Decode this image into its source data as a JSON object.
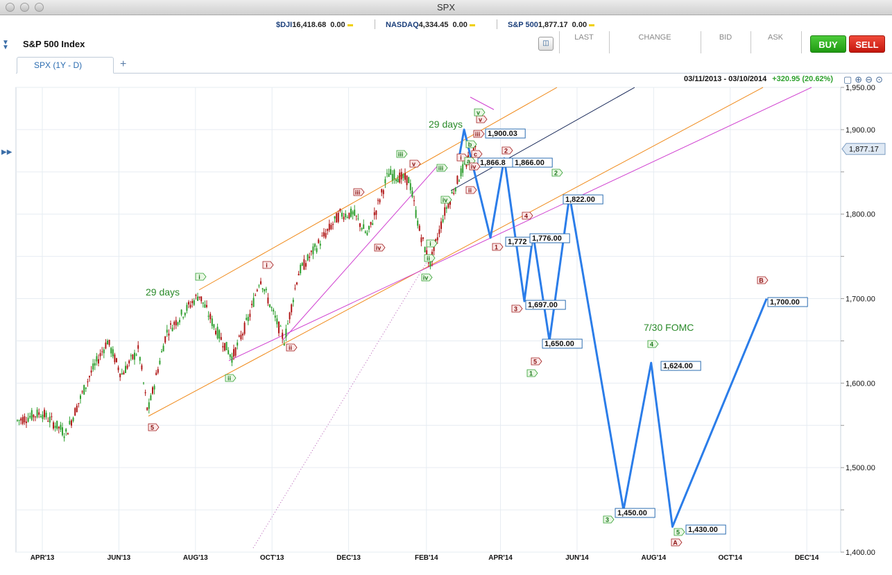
{
  "window": {
    "title": "SPX"
  },
  "ticker": [
    {
      "symbol": "$DJI",
      "value": "16,418.68",
      "change": "0.00"
    },
    {
      "symbol": "NASDAQ",
      "value": "4,334.45",
      "change": "0.00"
    },
    {
      "symbol": "S&P 500",
      "value": "1,877.17",
      "change": "0.00"
    }
  ],
  "header": {
    "title": "S&P 500 Index",
    "columns": [
      "LAST",
      "CHANGE",
      "BID",
      "ASK"
    ],
    "buy_label": "BUY",
    "sell_label": "SELL"
  },
  "tabs": [
    {
      "label": "SPX (1Y - D)"
    }
  ],
  "add_tab_label": "+",
  "chart_info": {
    "date_range": "03/11/2013 - 03/10/2014",
    "range_change": "+320.95 (20.62%)"
  },
  "colors": {
    "projection": "#2b7de9",
    "up_candle": "#2e9e2e",
    "down_candle": "#b01818",
    "channel_orange": "#f08a1a",
    "channel_magenta": "#d040d0",
    "trend_black": "#1a2a5a"
  },
  "chart_data": {
    "type": "line",
    "y_axis": {
      "ticks": [
        "1,950.00",
        "1,900.00",
        "1,850.00",
        "1,800.00",
        "1,750.00",
        "1,700.00",
        "1,650.00",
        "1,600.00",
        "1,550.00",
        "1,500.00",
        "1,450.00",
        "1,400.00"
      ],
      "tick_values": [
        1950,
        1900,
        1850,
        1800,
        1750,
        1700,
        1650,
        1600,
        1550,
        1500,
        1450,
        1400
      ],
      "labeled": [
        "1,950.00",
        "1,900.00",
        "1,800.00",
        "1,700.00",
        "1,600.00",
        "1,500.00",
        "1,400.00"
      ],
      "range": [
        1400,
        1950
      ],
      "current_price": "1,877.17"
    },
    "x_axis": {
      "ticks": [
        "APR'13",
        "JUN'13",
        "AUG'13",
        "OCT'13",
        "DEC'13",
        "FEB'14",
        "APR'14",
        "JUN'14",
        "AUG'14",
        "OCT'14",
        "DEC'14"
      ]
    },
    "projection_path": [
      {
        "date": "2014-02-27",
        "y": 1866.8
      },
      {
        "date": "2014-03-03",
        "y": 1900.03
      },
      {
        "date": "2014-03-24",
        "y": 1772
      },
      {
        "date": "2014-04-04",
        "y": 1866
      },
      {
        "date": "2014-04-20",
        "y": 1697
      },
      {
        "date": "2014-04-27",
        "y": 1776
      },
      {
        "date": "2014-05-10",
        "y": 1650
      },
      {
        "date": "2014-05-26",
        "y": 1822
      },
      {
        "date": "2014-07-08",
        "y": 1450
      },
      {
        "date": "2014-07-30",
        "y": 1624
      },
      {
        "date": "2014-08-16",
        "y": 1430
      },
      {
        "date": "2014-10-30",
        "y": 1700
      }
    ],
    "projection_labels": [
      "1,900.03",
      "1,866.8",
      "1,866.00",
      "1,772",
      "1,776.00",
      "1,697.00",
      "1,650.00",
      "1,822.00",
      "1,450.00",
      "1,624.00",
      "1,430.00",
      "1,700.00"
    ],
    "wave_labels": [
      "i",
      "ii",
      "iii",
      "iv",
      "v",
      "1",
      "2",
      "3",
      "4",
      "5",
      "A",
      "B",
      "a",
      "b",
      "c"
    ],
    "annotations": [
      "29 days",
      "29 days",
      "7/30 FOMC"
    ]
  }
}
